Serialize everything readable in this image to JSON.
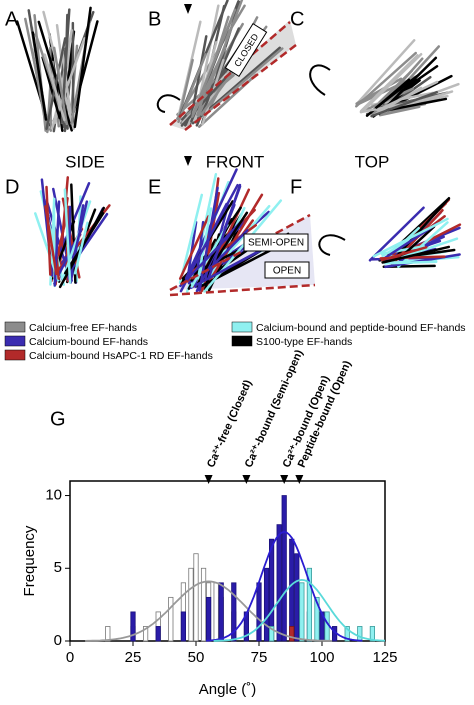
{
  "panels": [
    {
      "label": "A"
    },
    {
      "label": "B"
    },
    {
      "label": "C"
    },
    {
      "label": "D"
    },
    {
      "label": "E"
    },
    {
      "label": "F"
    }
  ],
  "views": [
    "SIDE",
    "FRONT",
    "TOP"
  ],
  "states": {
    "closed": "CLOSED",
    "semi_open": "SEMI-OPEN",
    "open": "OPEN"
  },
  "legend": [
    {
      "label": "Calcium-free EF-hands",
      "color": "#8c8c8c"
    },
    {
      "label": "Calcium-bound EF-hands",
      "color": "#3a2cb0"
    },
    {
      "label": "Calcium-bound HsAPC-1 RD EF-hands",
      "color": "#b22a2a"
    },
    {
      "label": "Calcium-bound and peptide-bound EF-hands",
      "color": "#8ff0f0"
    },
    {
      "label": "S100-type EF-hands",
      "color": "#000000"
    }
  ],
  "chart_data": {
    "type": "bar",
    "panel_label": "G",
    "x_label": "Angle (˚)",
    "y_label": "Frequency",
    "xlim": [
      0,
      125
    ],
    "ylim": [
      0,
      11
    ],
    "xticks": [
      0,
      25,
      50,
      75,
      100,
      125
    ],
    "yticks": [
      0,
      5,
      10
    ],
    "series": [
      {
        "name": "Calcium-free EF-hands",
        "color": "#ffffff",
        "stroke": "#777777",
        "x": [
          15,
          25,
          30,
          35,
          40,
          45,
          48,
          50,
          53,
          55,
          58,
          60,
          65,
          70
        ],
        "values": [
          1,
          1,
          1,
          2,
          3,
          4,
          5,
          6,
          5,
          4,
          4,
          3,
          2,
          1
        ],
        "fit": {
          "mean": 55,
          "sd": 14,
          "peak": 4.1
        },
        "fit_color": "#999999"
      },
      {
        "name": "Calcium-bound EF-hands",
        "color": "#2a1ca8",
        "stroke": "#1a107a",
        "x": [
          25,
          35,
          45,
          55,
          60,
          65,
          70,
          75,
          78,
          80,
          83,
          85,
          88,
          90,
          95,
          100,
          105
        ],
        "values": [
          2,
          1,
          2,
          3,
          4,
          4,
          2,
          4,
          5,
          7,
          8,
          10,
          7,
          6,
          2,
          2,
          1
        ],
        "fit": {
          "mean": 85,
          "sd": 9,
          "peak": 7.5
        },
        "fit_color": "#2a1cd0"
      },
      {
        "name": "Calcium-bound HsAPC-1 RD EF-hands",
        "color": "#b22a2a",
        "stroke": "#7a1515",
        "x": [
          88
        ],
        "values": [
          1
        ]
      },
      {
        "name": "Calcium-bound and peptide-bound EF-hands",
        "color": "#8ff0f0",
        "stroke": "#3a9a9a",
        "x": [
          80,
          92,
          95,
          98,
          102,
          110,
          115,
          120
        ],
        "values": [
          1,
          4,
          5,
          3,
          2,
          1,
          1,
          1
        ],
        "fit": {
          "mean": 92,
          "sd": 10,
          "peak": 4.2
        },
        "fit_color": "#5adada"
      }
    ],
    "annotations": [
      {
        "x": 55,
        "text": "Ca²⁺-free (Closed)"
      },
      {
        "x": 70,
        "text": "Ca²⁺-bound (Semi-open)"
      },
      {
        "x": 85,
        "text": "Ca²⁺-bound (Open)"
      },
      {
        "x": 91,
        "text": "Peptide-bound (Open)"
      }
    ]
  }
}
